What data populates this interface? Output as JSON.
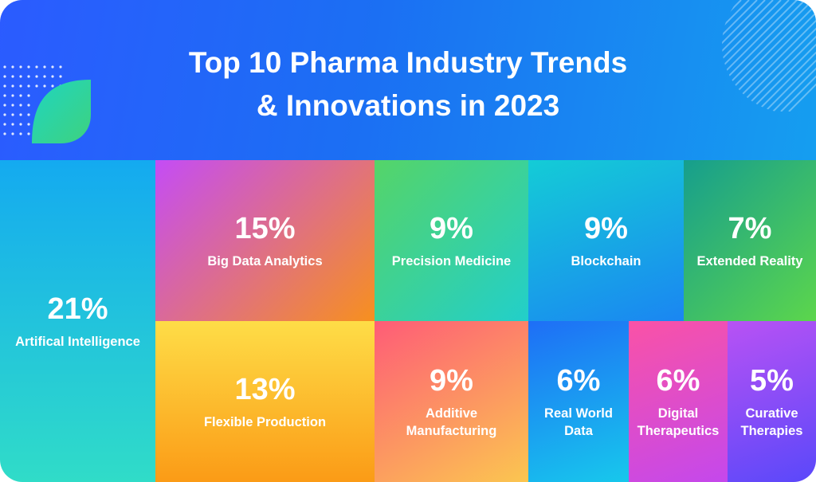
{
  "header": {
    "title_line1": "Top 10 Pharma Industry Trends",
    "title_line2": "& Innovations in 2023"
  },
  "chart_data": {
    "type": "treemap",
    "title": "Top 10 Pharma Industry Trends & Innovations in 2023",
    "unit": "%",
    "items": [
      {
        "label": "Artifical Intelligence",
        "value": 21,
        "display": "21%",
        "colors": [
          "#14aaf0",
          "#30dcc8"
        ]
      },
      {
        "label": "Big Data Analytics",
        "value": 15,
        "display": "15%",
        "colors": [
          "#c44cf6",
          "#f7901e"
        ]
      },
      {
        "label": "Precision Medicine",
        "value": 9,
        "display": "9%",
        "colors": [
          "#55d468",
          "#22cfca"
        ]
      },
      {
        "label": "Blockchain",
        "value": 9,
        "display": "9%",
        "colors": [
          "#14ccd6",
          "#1a86f2"
        ]
      },
      {
        "label": "Extended Reality",
        "value": 7,
        "display": "7%",
        "colors": [
          "#169e8d",
          "#5cd64c"
        ]
      },
      {
        "label": "Flexible Production",
        "value": 13,
        "display": "13%",
        "colors": [
          "#fedd47",
          "#fb9b16"
        ]
      },
      {
        "label": "Additive Manufacturing",
        "value": 9,
        "display": "9%",
        "colors": [
          "#fe5c77",
          "#fbc650"
        ]
      },
      {
        "label": "Real World Data",
        "value": 6,
        "display": "6%",
        "colors": [
          "#1e6ef6",
          "#17c8ec"
        ]
      },
      {
        "label": "Digital Therapeutics",
        "value": 6,
        "display": "6%",
        "colors": [
          "#fa52a6",
          "#c448ec"
        ]
      },
      {
        "label": "Curative Therapies",
        "value": 5,
        "display": "5%",
        "colors": [
          "#b852f4",
          "#5a48fa"
        ]
      }
    ],
    "label_lines": {
      "Additive Manufacturing": "Additive\nManufacturing",
      "Real World Data": "Real World\nData",
      "Digital Therapeutics": "Digital\nTherapeutics",
      "Curative Therapies": "Curative\nTherapies"
    }
  }
}
